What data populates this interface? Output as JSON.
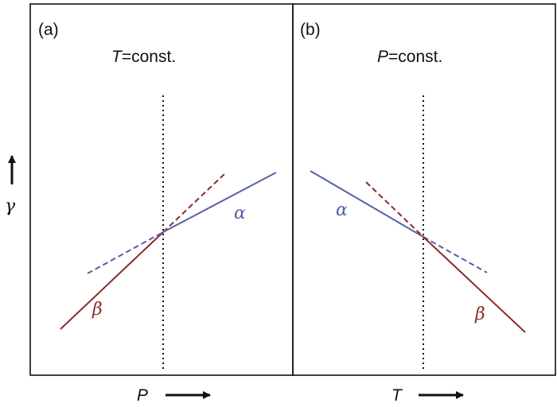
{
  "panels": [
    {
      "tag": "(a)",
      "condition_var": "T",
      "condition_rest": "=const.",
      "axis_var": "P",
      "alpha_label": "α",
      "beta_label": "β"
    },
    {
      "tag": "(b)",
      "condition_var": "P",
      "condition_rest": "=const.",
      "axis_var": "T",
      "alpha_label": "α",
      "beta_label": "β"
    }
  ],
  "y_axis_label": "γ",
  "colors": {
    "alpha": "#5560a8",
    "beta": "#8b2a2a",
    "frame": "#111111",
    "dotted": "#111111"
  }
}
